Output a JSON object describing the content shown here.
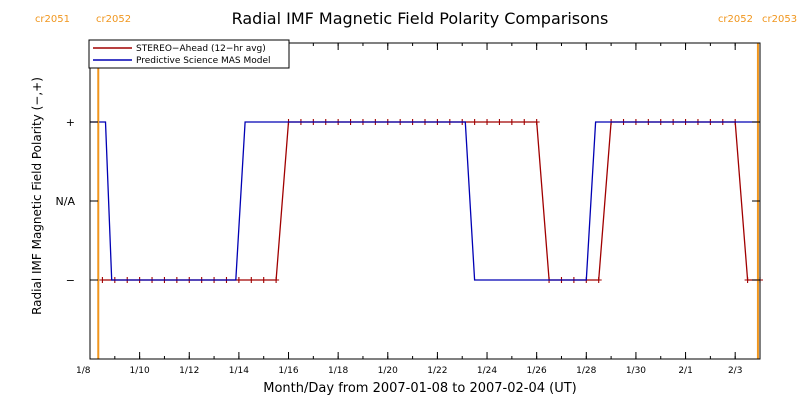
{
  "chart_data": {
    "type": "line",
    "title": "Radial IMF Magnetic Field Polarity Comparisons",
    "xlabel": "Month/Day from 2007-01-08 to 2007-02-04 (UT)",
    "ylabel": "Radial IMF Magnetic Field Polarity (−,+)",
    "x_range": [
      "2007-01-08T00:00",
      "2007-02-04T00:00"
    ],
    "x_ticks": [
      {
        "date": "2007-01-08",
        "label": "1/8"
      },
      {
        "date": "2007-01-10",
        "label": "1/10"
      },
      {
        "date": "2007-01-12",
        "label": "1/12"
      },
      {
        "date": "2007-01-14",
        "label": "1/14"
      },
      {
        "date": "2007-01-16",
        "label": "1/16"
      },
      {
        "date": "2007-01-18",
        "label": "1/18"
      },
      {
        "date": "2007-01-20",
        "label": "1/20"
      },
      {
        "date": "2007-01-22",
        "label": "1/22"
      },
      {
        "date": "2007-01-24",
        "label": "1/24"
      },
      {
        "date": "2007-01-26",
        "label": "1/26"
      },
      {
        "date": "2007-01-28",
        "label": "1/28"
      },
      {
        "date": "2007-01-30",
        "label": "1/30"
      },
      {
        "date": "2007-02-01",
        "label": "2/1"
      },
      {
        "date": "2007-02-03",
        "label": "2/3"
      }
    ],
    "y_range": [
      -2,
      2
    ],
    "y_ticks": [
      {
        "value": 1,
        "label": "+"
      },
      {
        "value": 0,
        "label": "N/A"
      },
      {
        "value": -1,
        "label": "−"
      }
    ],
    "legend_position": "top-left",
    "series": [
      {
        "name": "STEREO−Ahead (12−hr avg)",
        "color": "#a00000",
        "marker": "plus",
        "x": [
          "2007-01-08T12:00",
          "2007-01-09T00:00",
          "2007-01-09T12:00",
          "2007-01-10T00:00",
          "2007-01-10T12:00",
          "2007-01-11T00:00",
          "2007-01-11T12:00",
          "2007-01-12T00:00",
          "2007-01-12T12:00",
          "2007-01-13T00:00",
          "2007-01-13T12:00",
          "2007-01-14T00:00",
          "2007-01-14T12:00",
          "2007-01-15T00:00",
          "2007-01-15T12:00",
          "2007-01-16T00:00",
          "2007-01-16T12:00",
          "2007-01-17T00:00",
          "2007-01-17T12:00",
          "2007-01-18T00:00",
          "2007-01-18T12:00",
          "2007-01-19T00:00",
          "2007-01-19T12:00",
          "2007-01-20T00:00",
          "2007-01-20T12:00",
          "2007-01-21T00:00",
          "2007-01-21T12:00",
          "2007-01-22T00:00",
          "2007-01-22T12:00",
          "2007-01-23T00:00",
          "2007-01-23T12:00",
          "2007-01-24T00:00",
          "2007-01-24T12:00",
          "2007-01-25T00:00",
          "2007-01-25T12:00",
          "2007-01-26T00:00",
          "2007-01-26T12:00",
          "2007-01-27T00:00",
          "2007-01-27T12:00",
          "2007-01-28T00:00",
          "2007-01-28T12:00",
          "2007-01-29T00:00",
          "2007-01-29T12:00",
          "2007-01-30T00:00",
          "2007-01-30T12:00",
          "2007-01-31T00:00",
          "2007-01-31T12:00",
          "2007-02-01T00:00",
          "2007-02-01T12:00",
          "2007-02-02T00:00",
          "2007-02-02T12:00",
          "2007-02-03T00:00",
          "2007-02-03T12:00",
          "2007-02-04T00:00"
        ],
        "values": [
          -1,
          -1,
          -1,
          -1,
          -1,
          -1,
          -1,
          -1,
          -1,
          -1,
          -1,
          -1,
          -1,
          -1,
          -1,
          1,
          1,
          1,
          1,
          1,
          1,
          1,
          1,
          1,
          1,
          1,
          1,
          1,
          1,
          1,
          1,
          1,
          1,
          1,
          1,
          1,
          -1,
          -1,
          -1,
          -1,
          -1,
          1,
          1,
          1,
          1,
          1,
          1,
          1,
          1,
          1,
          1,
          1,
          -1,
          -1
        ]
      },
      {
        "name": "Predictive Science MAS Model",
        "color": "#0000b4",
        "marker": "none",
        "x": [
          "2007-01-08T00:00",
          "2007-01-08T15:00",
          "2007-01-08T21:00",
          "2007-01-13T21:00",
          "2007-01-14T06:00",
          "2007-01-23T03:00",
          "2007-01-23T12:00",
          "2007-01-28T00:00",
          "2007-01-28T09:00",
          "2007-02-04T00:00"
        ],
        "values": [
          1,
          1,
          -1,
          -1,
          1,
          1,
          -1,
          -1,
          1,
          1
        ]
      }
    ],
    "carrington_markers": [
      {
        "date": "2007-01-08T08:00",
        "left_label": "cr2051",
        "right_label": "cr2052"
      },
      {
        "date": "2007-02-03T22:00",
        "left_label": "cr2052",
        "right_label": "cr2053"
      }
    ]
  }
}
